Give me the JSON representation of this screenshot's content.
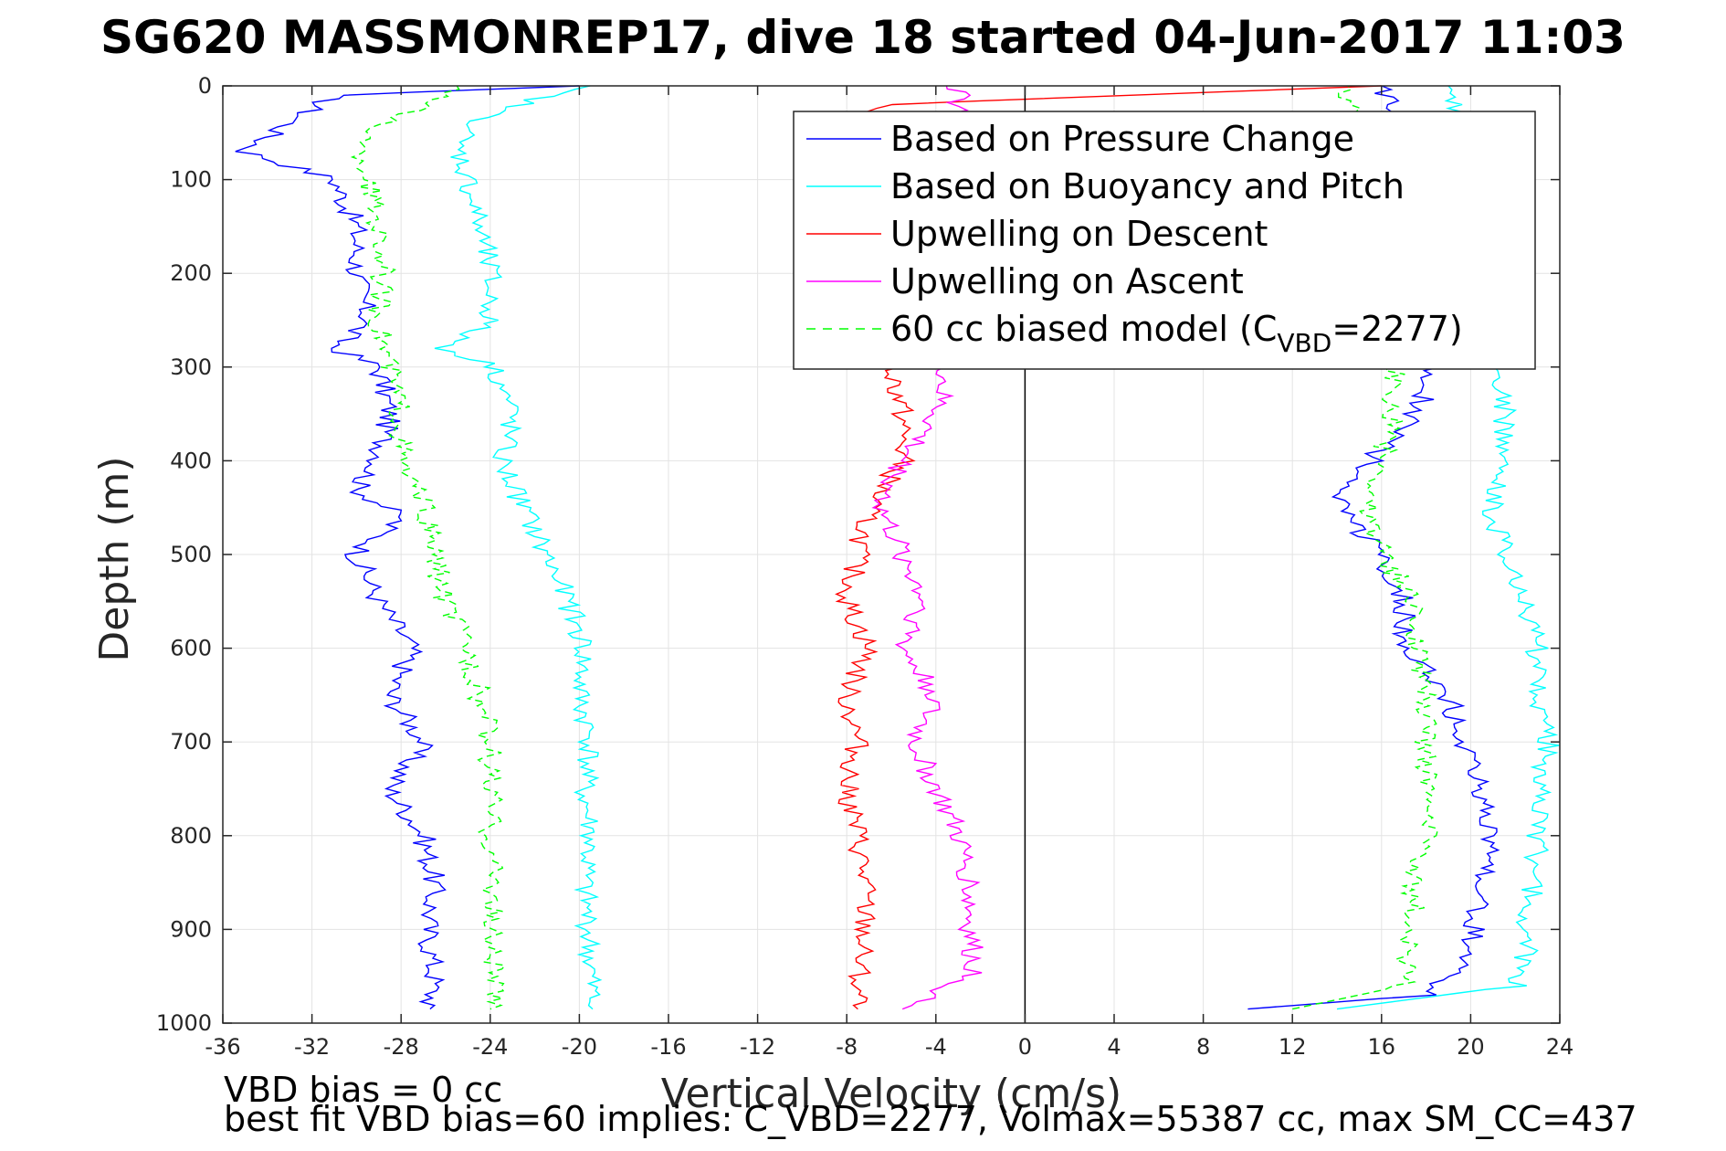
{
  "title": "SG620 MASSMONREP17, dive 18 started 04-Jun-2017 11:03",
  "footer": {
    "line1": "VBD bias = 0 cc",
    "line2": "best fit VBD bias=60 implies: C_VBD=2277, Volmax=55387 cc, max SM_CC=437"
  },
  "chart_data": {
    "type": "line",
    "title": "SG620 MASSMONREP17, dive 18 started 04-Jun-2017 11:03",
    "xlabel": "Vertical Velocity (cm/s)",
    "ylabel": "Depth (m)",
    "xlim": [
      -36,
      24
    ],
    "ylim": [
      0,
      1000
    ],
    "y_reversed": true,
    "grid": true,
    "xticks": [
      -36,
      -32,
      -28,
      -24,
      -20,
      -16,
      -12,
      -8,
      -4,
      0,
      4,
      8,
      12,
      16,
      20,
      24
    ],
    "yticks": [
      0,
      100,
      200,
      300,
      400,
      500,
      600,
      700,
      800,
      900,
      1000
    ],
    "zero_line_x": 0,
    "legend": {
      "placement": "top-right",
      "entries": [
        {
          "label": "Based on Pressure Change",
          "color": "#0000ff",
          "style": "solid"
        },
        {
          "label": "Based on Buoyancy and Pitch",
          "color": "#00ffff",
          "style": "solid"
        },
        {
          "label": "Upwelling on Descent",
          "color": "#ff0000",
          "style": "solid"
        },
        {
          "label": "Upwelling on Ascent",
          "color": "#ff00ff",
          "style": "solid"
        },
        {
          "label_main": "60 cc biased model (C",
          "label_sub": "VBD",
          "label_end": "=2277)",
          "color": "#00ff00",
          "style": "dashed"
        }
      ]
    },
    "series": [
      {
        "name": "Based on Pressure Change (descent)",
        "color": "#0000ff",
        "depth": [
          0,
          10,
          40,
          70,
          100,
          150,
          200,
          250,
          280,
          300,
          350,
          400,
          430,
          460,
          500,
          550,
          600,
          650,
          700,
          750,
          800,
          850,
          900,
          950,
          985
        ],
        "values": [
          -20,
          -31,
          -33,
          -35,
          -31,
          -30,
          -30,
          -29.5,
          -31,
          -29,
          -28.5,
          -29,
          -30,
          -28,
          -30,
          -29,
          -27.5,
          -28.5,
          -27,
          -28.5,
          -27,
          -26.5,
          -26.8,
          -26.5,
          -26.7
        ]
      },
      {
        "name": "Based on Pressure Change (ascent)",
        "color": "#0000ff",
        "depth": [
          985,
          970,
          930,
          900,
          850,
          800,
          750,
          700,
          650,
          600,
          550,
          500,
          450,
          400,
          350,
          300,
          200,
          100,
          0
        ],
        "values": [
          10,
          18,
          20,
          20.2,
          20.5,
          21,
          20.5,
          19.5,
          19,
          17,
          17,
          16,
          14,
          15.5,
          17.5,
          18.5,
          19,
          18,
          16
        ]
      },
      {
        "name": "Based on Buoyancy and Pitch (descent)",
        "color": "#00ffff",
        "depth": [
          0,
          30,
          60,
          100,
          150,
          200,
          250,
          280,
          300,
          350,
          400,
          450,
          500,
          550,
          600,
          650,
          700,
          750,
          800,
          850,
          900,
          950,
          985
        ],
        "values": [
          -20,
          -24,
          -25.5,
          -25,
          -24.5,
          -24,
          -24,
          -26,
          -23.8,
          -23,
          -23.5,
          -22.5,
          -21.5,
          -20.5,
          -19.8,
          -20,
          -19.5,
          -19.8,
          -19.5,
          -19.8,
          -19.6,
          -19.5,
          -19.4
        ]
      },
      {
        "name": "Based on Buoyancy and Pitch (ascent)",
        "color": "#00ffff",
        "depth": [
          985,
          960,
          930,
          900,
          850,
          800,
          750,
          700,
          650,
          600,
          550,
          500,
          450,
          400,
          350,
          300,
          200,
          100,
          0
        ],
        "values": [
          14,
          22,
          22.5,
          22.5,
          22.8,
          23,
          23,
          23.5,
          23,
          23,
          22.5,
          21.5,
          21,
          21.5,
          21.5,
          21.2,
          21,
          20.5,
          19
        ]
      },
      {
        "name": "Upwelling on Descent",
        "color": "#ff0000",
        "depth": [
          0,
          20,
          70,
          300,
          350,
          400,
          450,
          500,
          550,
          600,
          650,
          700,
          750,
          800,
          850,
          900,
          950,
          985
        ],
        "values": [
          16,
          -6.5,
          -10.2,
          -6,
          -5.5,
          -5.5,
          -7,
          -7.5,
          -8,
          -7,
          -8,
          -7.5,
          -8,
          -7.5,
          -7.2,
          -7.2,
          -7.5,
          -7.5
        ]
      },
      {
        "name": "Upwelling on Ascent",
        "color": "#ff00ff",
        "depth": [
          0,
          10,
          300,
          350,
          400,
          450,
          500,
          550,
          600,
          650,
          700,
          750,
          800,
          850,
          900,
          950,
          985
        ],
        "values": [
          -3,
          -3,
          -3.5,
          -4,
          -5.5,
          -6.5,
          -5.5,
          -4.5,
          -5.5,
          -4,
          -5,
          -4,
          -3,
          -2.5,
          -2.5,
          -2.3,
          -5.5
        ]
      },
      {
        "name": "60 cc biased model (descent)",
        "color": "#00ff00",
        "dashed": true,
        "depth": [
          0,
          30,
          60,
          100,
          150,
          200,
          250,
          300,
          350,
          400,
          450,
          500,
          550,
          600,
          650,
          700,
          750,
          800,
          850,
          900,
          950,
          985
        ],
        "values": [
          -25,
          -28,
          -30,
          -29.5,
          -29,
          -28.8,
          -29,
          -28.5,
          -28,
          -28,
          -27,
          -26.5,
          -26,
          -25,
          -24.5,
          -24,
          -24,
          -24,
          -23.8,
          -24,
          -23.8,
          -24
        ]
      },
      {
        "name": "60 cc biased model (ascent)",
        "color": "#00ff00",
        "dashed": true,
        "depth": [
          985,
          960,
          900,
          850,
          800,
          750,
          700,
          650,
          600,
          550,
          500,
          450,
          400,
          350,
          300,
          200,
          100,
          0
        ],
        "values": [
          12,
          17,
          17.3,
          17.5,
          18,
          18,
          18,
          18,
          17.5,
          17.5,
          16,
          15.5,
          16,
          16.5,
          16.5,
          16,
          15,
          14.5
        ]
      }
    ]
  }
}
